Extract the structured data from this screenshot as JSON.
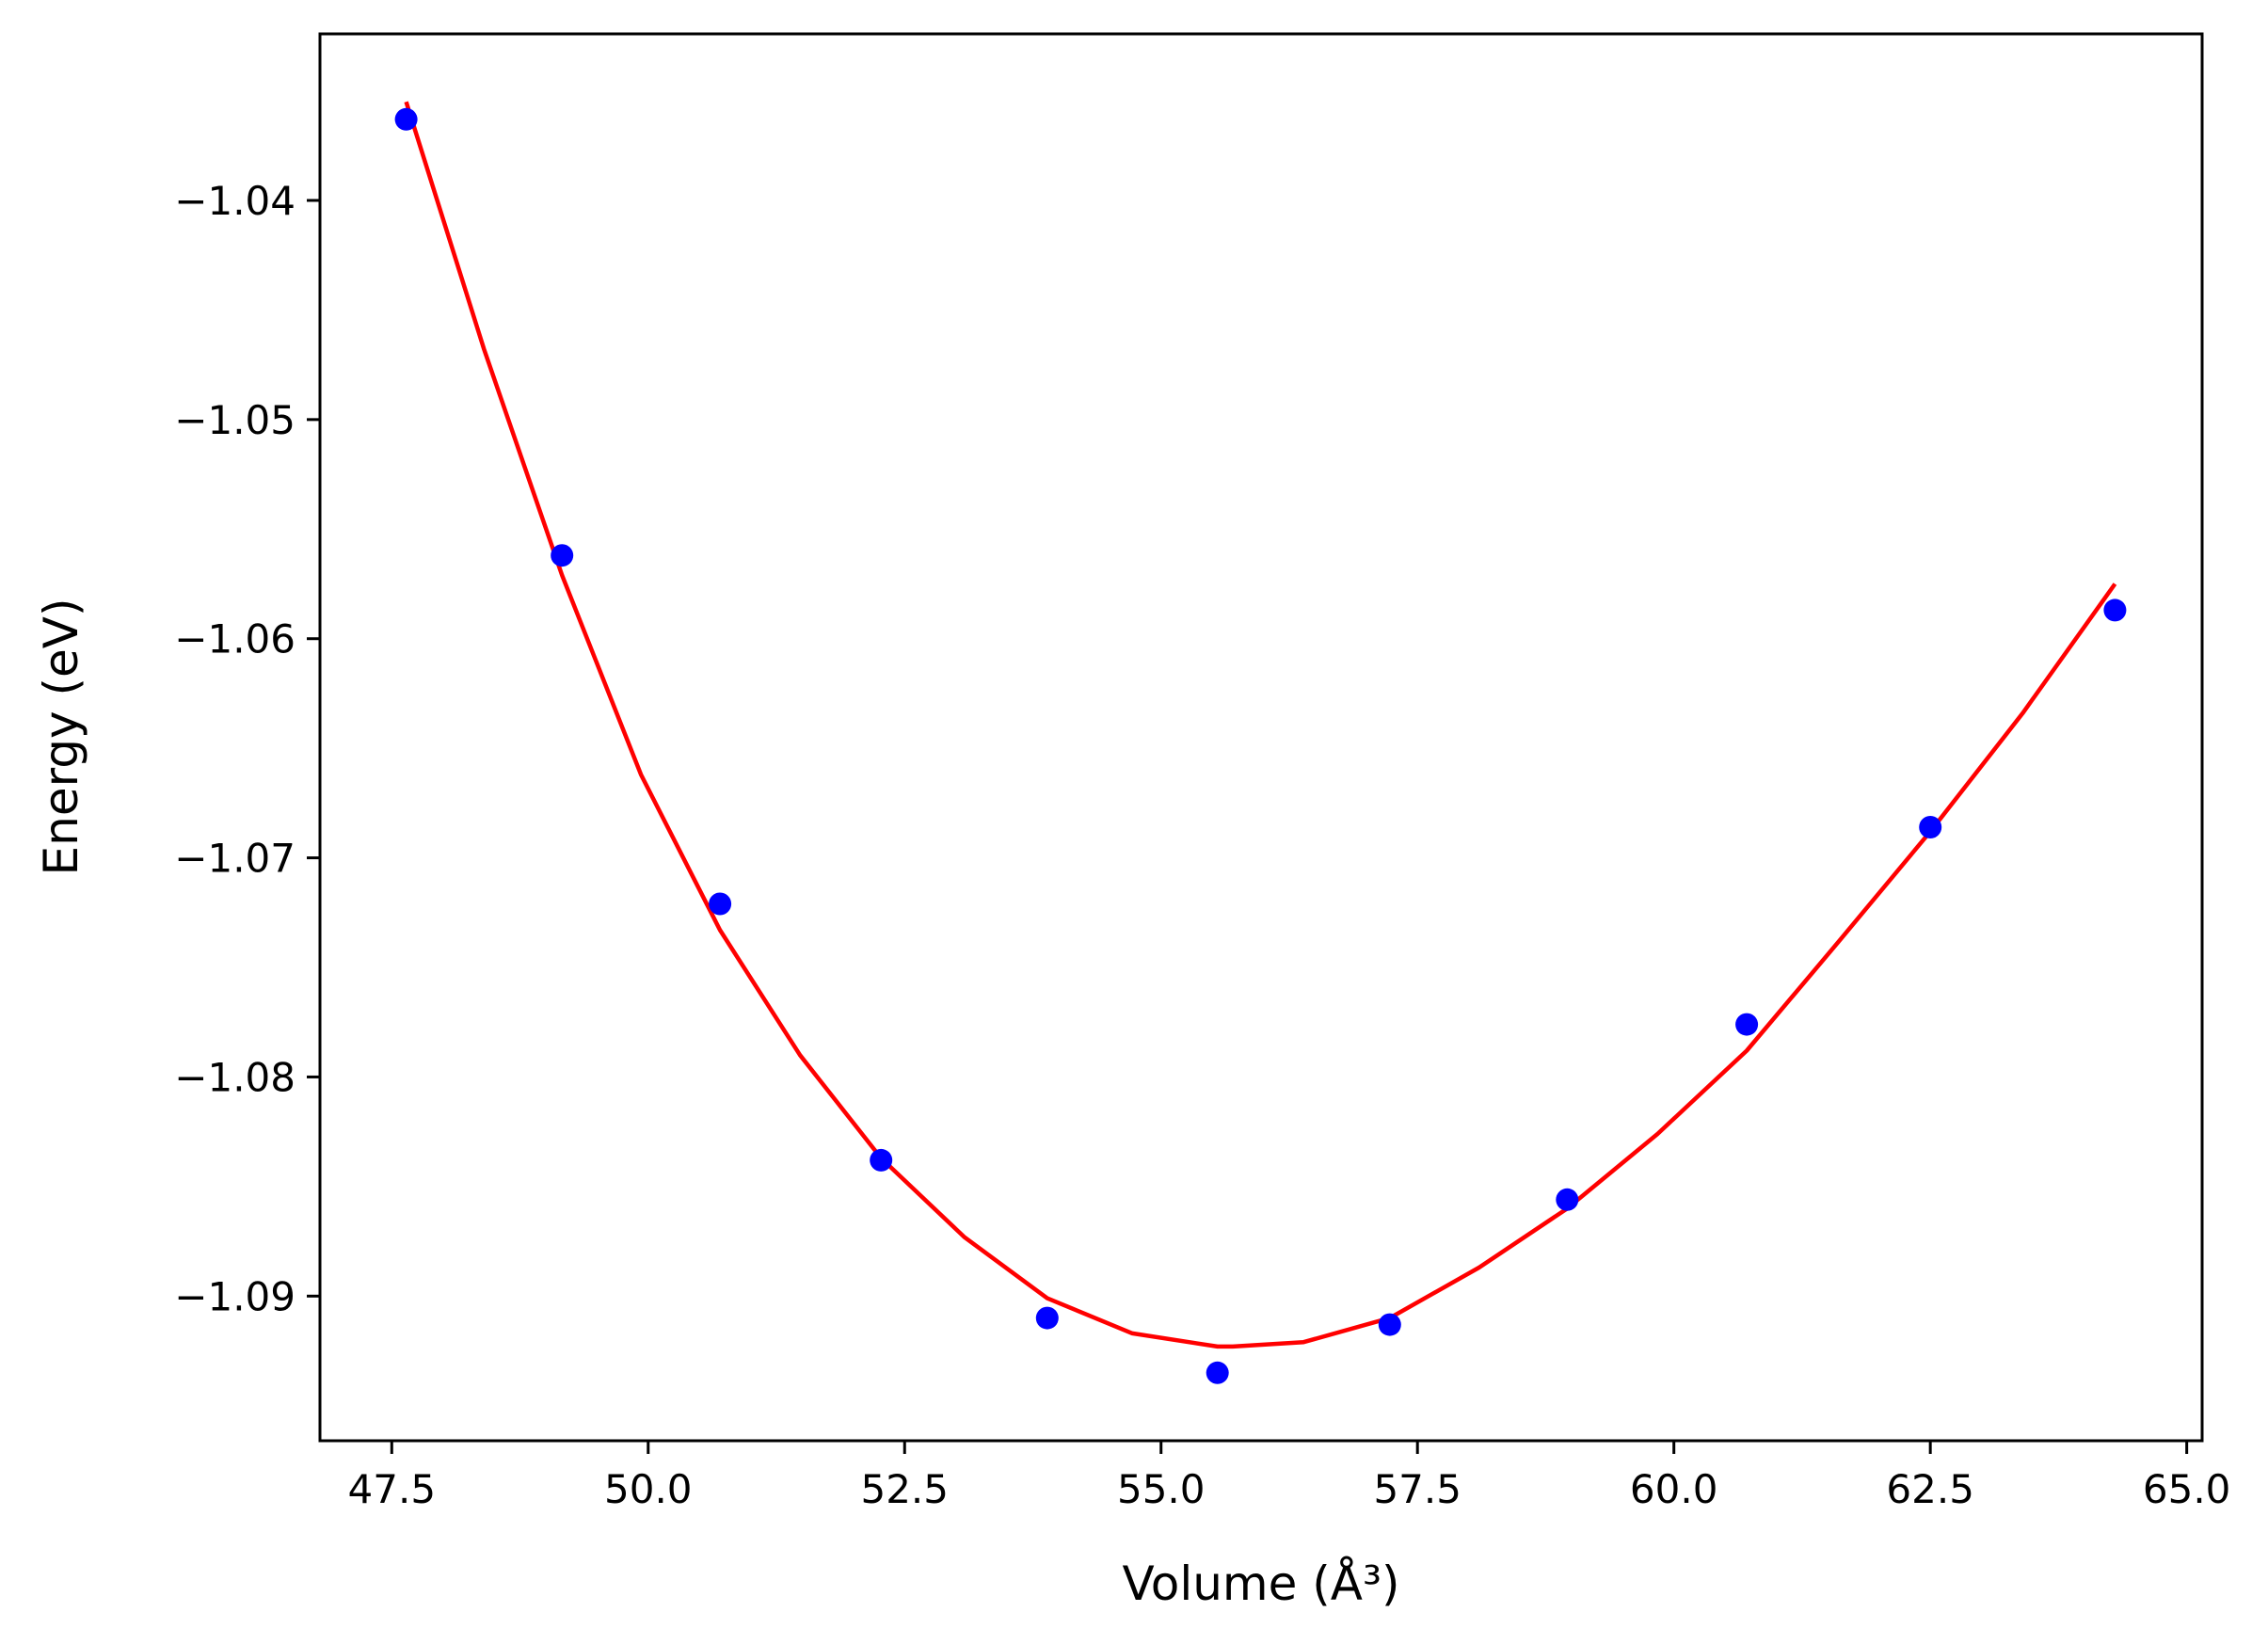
{
  "chart_data": {
    "type": "scatter",
    "xlabel": "Volume (Å³)",
    "ylabel": "Energy (eV)",
    "xlim": [
      46.8,
      65.15
    ],
    "ylim": [
      -1.0966,
      -1.0324
    ],
    "xticks": [
      47.5,
      50.0,
      52.5,
      55.0,
      57.5,
      60.0,
      62.5,
      65.0
    ],
    "xtick_labels": [
      "47.5",
      "50.0",
      "52.5",
      "55.0",
      "57.5",
      "60.0",
      "62.5",
      "65.0"
    ],
    "yticks": [
      -1.04,
      -1.05,
      -1.06,
      -1.07,
      -1.08,
      -1.09
    ],
    "ytick_labels": [
      "−1.04",
      "−1.05",
      "−1.06",
      "−1.07",
      "−1.08",
      "−1.09"
    ],
    "grid": false,
    "series": [
      {
        "kind": "scatter",
        "color": "#0000ff",
        "points": [
          {
            "x": 47.64,
            "y": -1.0363
          },
          {
            "x": 49.16,
            "y": -1.0562
          },
          {
            "x": 50.7,
            "y": -1.0721
          },
          {
            "x": 52.27,
            "y": -1.0838
          },
          {
            "x": 53.89,
            "y": -1.091
          },
          {
            "x": 55.55,
            "y": -1.0935
          },
          {
            "x": 57.23,
            "y": -1.0913
          },
          {
            "x": 58.96,
            "y": -1.0856
          },
          {
            "x": 60.71,
            "y": -1.0776
          },
          {
            "x": 62.5,
            "y": -1.0686
          },
          {
            "x": 64.3,
            "y": -1.0587
          }
        ]
      },
      {
        "kind": "line",
        "color": "#ff0000",
        "points": [
          {
            "x": 47.64,
            "y": -1.0355
          },
          {
            "x": 48.4,
            "y": -1.0468
          },
          {
            "x": 49.16,
            "y": -1.0571
          },
          {
            "x": 49.93,
            "y": -1.0662
          },
          {
            "x": 50.7,
            "y": -1.0733
          },
          {
            "x": 51.48,
            "y": -1.079
          },
          {
            "x": 52.27,
            "y": -1.0837
          },
          {
            "x": 53.08,
            "y": -1.0873
          },
          {
            "x": 53.89,
            "y": -1.0901
          },
          {
            "x": 54.72,
            "y": -1.0917
          },
          {
            "x": 55.55,
            "y": -1.0923
          },
          {
            "x": 55.7,
            "y": -1.0923
          },
          {
            "x": 56.39,
            "y": -1.0921
          },
          {
            "x": 57.23,
            "y": -1.091
          },
          {
            "x": 58.1,
            "y": -1.0887
          },
          {
            "x": 58.96,
            "y": -1.086
          },
          {
            "x": 59.84,
            "y": -1.0826
          },
          {
            "x": 60.71,
            "y": -1.0788
          },
          {
            "x": 61.61,
            "y": -1.0738
          },
          {
            "x": 62.5,
            "y": -1.0688
          },
          {
            "x": 63.4,
            "y": -1.0634
          },
          {
            "x": 64.3,
            "y": -1.0575
          }
        ]
      }
    ]
  }
}
